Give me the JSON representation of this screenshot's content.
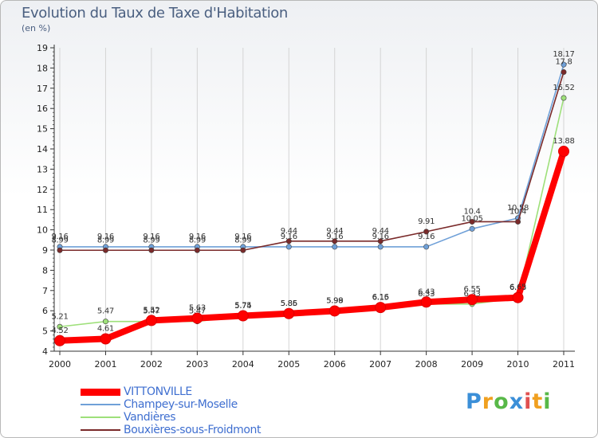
{
  "chart_data": {
    "type": "line",
    "title": "Evolution du Taux de Taxe d'Habitation",
    "subtitle": "(en %)",
    "xlabel": "",
    "ylabel": "",
    "ylim": [
      4,
      19
    ],
    "yticks": [
      "4",
      "5",
      "6",
      "7",
      "8",
      "9",
      "10",
      "11",
      "12",
      "13",
      "14",
      "15",
      "16",
      "17",
      "18",
      "19"
    ],
    "categories": [
      "2000",
      "2001",
      "2002",
      "2003",
      "2004",
      "2005",
      "2006",
      "2007",
      "2008",
      "2009",
      "2010",
      "2011"
    ],
    "series": [
      {
        "name": "VITTONVILLE",
        "color": "#ff0000",
        "values": [
          4.52,
          4.61,
          5.52,
          5.63,
          5.75,
          5.86,
          5.99,
          6.16,
          6.43,
          6.55,
          6.65,
          13.88
        ],
        "labels": [
          "4.52",
          "4.61",
          "5.52",
          "5.63",
          "5.75",
          "5.86",
          "5.99",
          "6.16",
          "6.43",
          "6.55",
          "6.65",
          "13.88"
        ]
      },
      {
        "name": "Champey-sur-Moselle",
        "color": "#6fa0d8",
        "values": [
          9.16,
          9.16,
          9.16,
          9.16,
          9.16,
          9.16,
          9.16,
          9.16,
          9.16,
          10.05,
          10.58,
          18.17
        ],
        "labels": [
          "9.16",
          "9.16",
          "9.16",
          "9.16",
          "9.16",
          "9.16",
          "9.16",
          "9.16",
          "9.16",
          "10.05",
          "10.58",
          "18.17"
        ]
      },
      {
        "name": "Vandières",
        "color": "#9ee07a",
        "values": [
          5.21,
          5.47,
          5.47,
          5.47,
          5.74,
          5.85,
          5.98,
          6.15,
          6.33,
          6.33,
          6.63,
          16.52
        ],
        "labels": [
          "5.21",
          "5.47",
          "5.47",
          "5.47",
          "5.74",
          "5.85",
          "5.98",
          "6.15",
          "6.33",
          "6.33",
          "6.63",
          "16.52"
        ]
      },
      {
        "name": "Bouxières-sous-Froidmont",
        "color": "#7a2a2a",
        "values": [
          8.99,
          8.99,
          8.99,
          8.99,
          8.99,
          9.44,
          9.44,
          9.44,
          9.91,
          10.4,
          10.4,
          17.8
        ],
        "labels": [
          "8.99",
          "8.99",
          "8.99",
          "8.99",
          "8.99",
          "9.44",
          "9.44",
          "9.44",
          "9.91",
          "10.4",
          "10.4",
          "17.8"
        ]
      }
    ]
  },
  "legend": {
    "items": [
      {
        "label": "VITTONVILLE",
        "color": "#ff0000",
        "weight": 9
      },
      {
        "label": "Champey-sur-Moselle",
        "color": "#6fa0d8",
        "weight": 2
      },
      {
        "label": "Vandières",
        "color": "#9ee07a",
        "weight": 2
      },
      {
        "label": "Bouxières-sous-Froidmont",
        "color": "#7a2a2a",
        "weight": 2
      }
    ]
  },
  "brand": {
    "letters": [
      "P",
      "r",
      "o",
      "x",
      "i",
      "t",
      "i"
    ],
    "colors": [
      "#3b8fd8",
      "#f0a020",
      "#58b848",
      "#3b8fd8",
      "#e05050",
      "#f0a020",
      "#58b848"
    ]
  }
}
